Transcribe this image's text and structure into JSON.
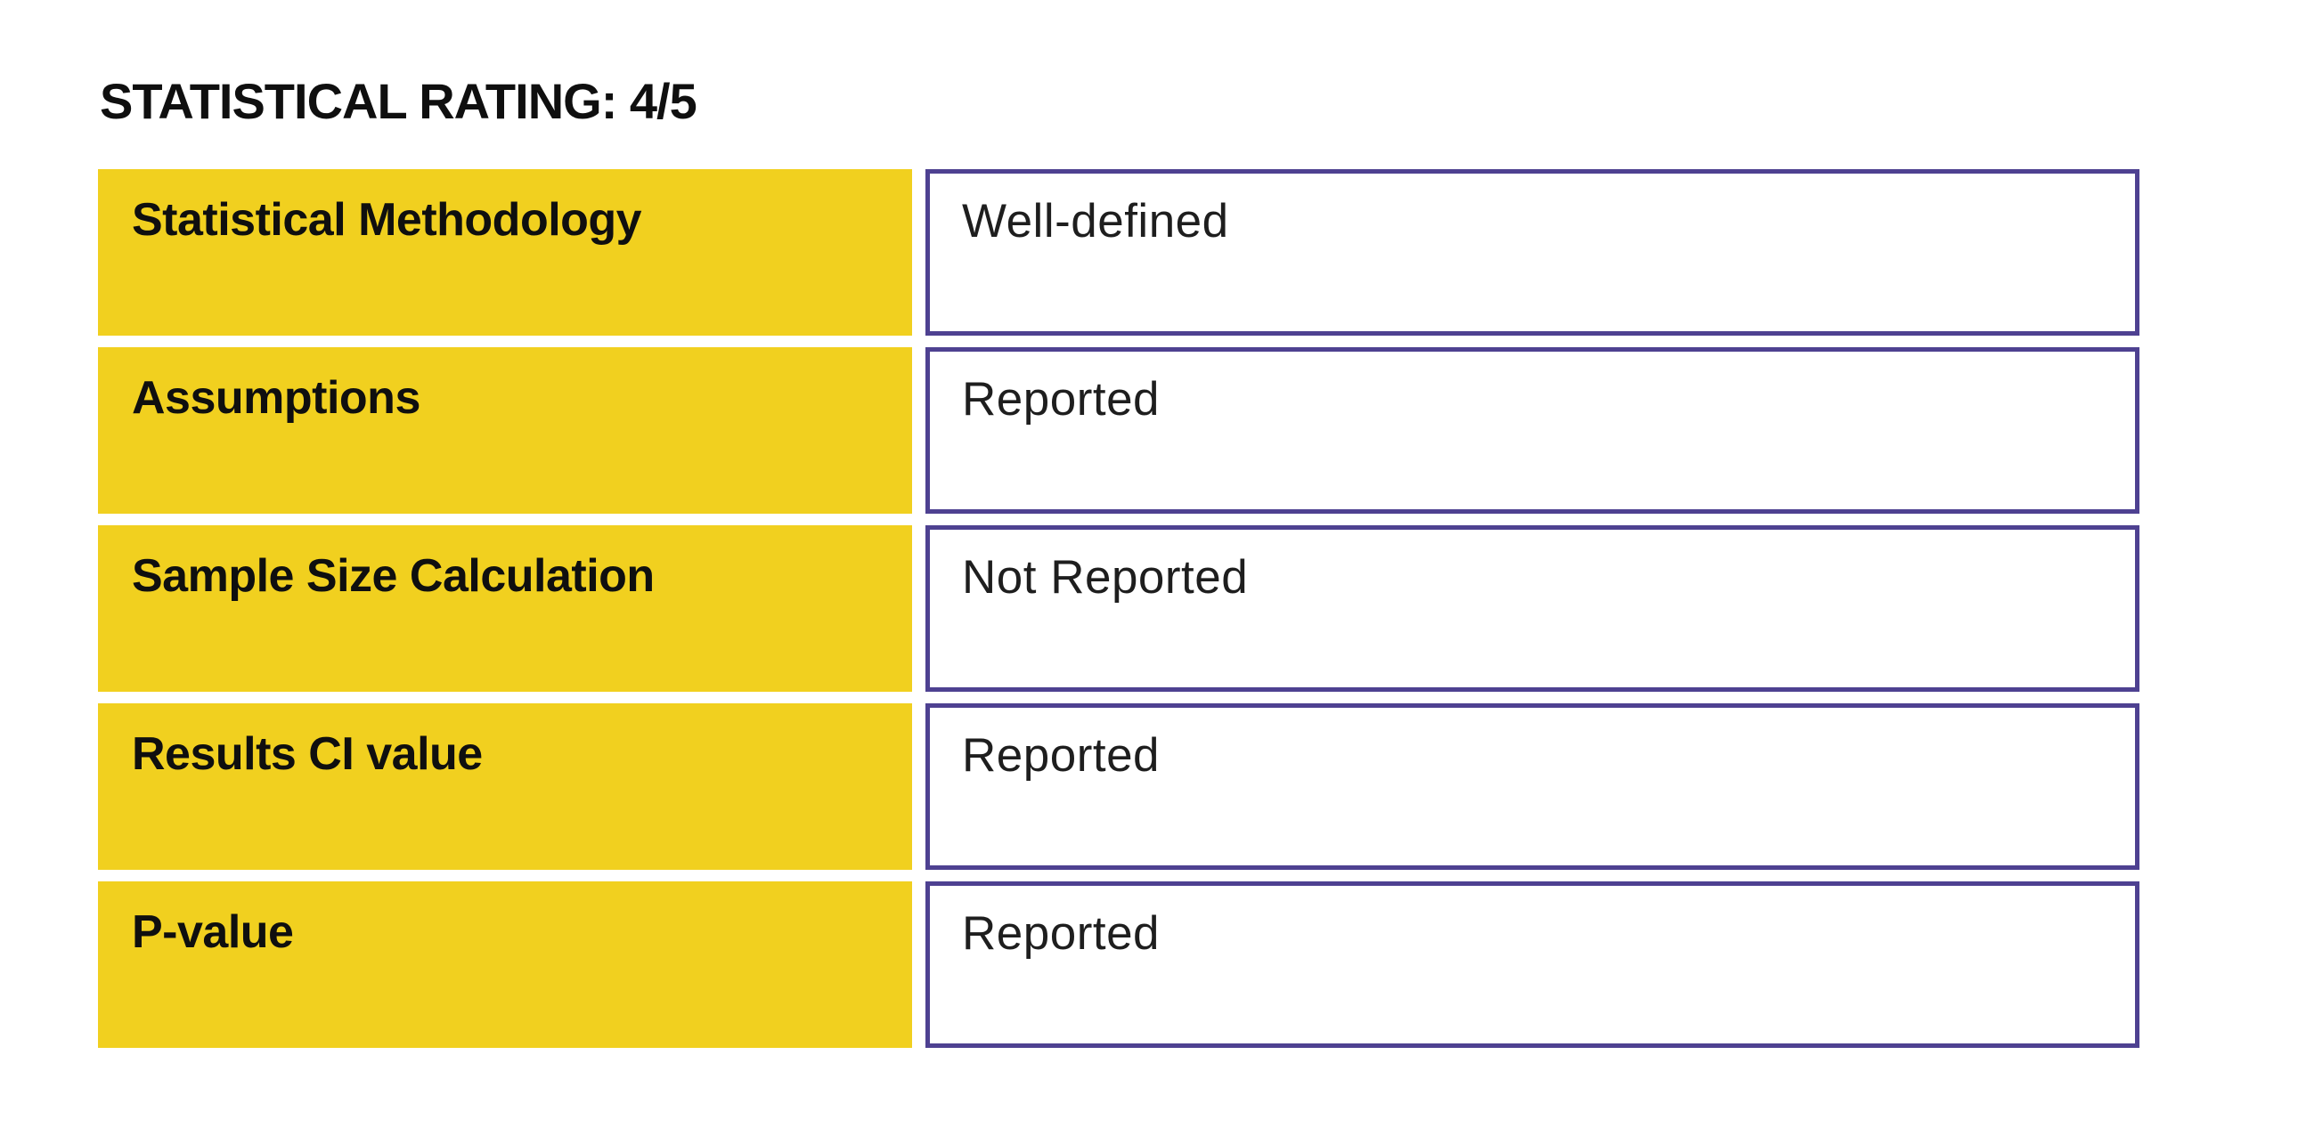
{
  "title": "STATISTICAL RATING: 4/5",
  "rows": [
    {
      "label": "Statistical Methodology",
      "value": "Well-defined"
    },
    {
      "label": "Assumptions",
      "value": "Reported"
    },
    {
      "label": "Sample Size Calculation",
      "value": "Not Reported"
    },
    {
      "label": "Results CI value",
      "value": "Reported"
    },
    {
      "label": "P-value",
      "value": "Reported"
    }
  ],
  "colors": {
    "label_bg": "#F1D01F",
    "value_border": "#4E4191",
    "text": "#0F0F0F"
  }
}
